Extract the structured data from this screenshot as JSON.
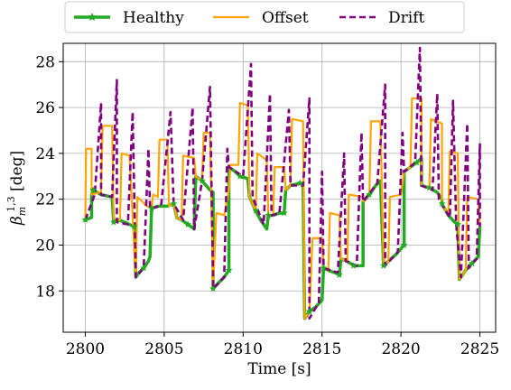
{
  "chart_data": {
    "type": "line",
    "xlabel": "Time [s]",
    "ylabel_main": "β",
    "ylabel_sub": "m",
    "ylabel_sup": "1,3",
    "ylabel_unit": " [deg]",
    "xlim": [
      2798.6,
      2826.0
    ],
    "ylim": [
      16.2,
      28.8
    ],
    "xticks": [
      2800,
      2805,
      2810,
      2815,
      2820,
      2825
    ],
    "yticks": [
      18,
      20,
      22,
      24,
      26,
      28
    ],
    "grid": true,
    "legend_position": "top-center, outside",
    "series": [
      {
        "name": "Healthy",
        "color": "#22aa22",
        "style": "solid-star-markers",
        "points": [
          [
            2800.0,
            21.1
          ],
          [
            2800.4,
            21.2
          ],
          [
            2800.4,
            22.2
          ],
          [
            2800.5,
            22.4
          ],
          [
            2801.0,
            22.2
          ],
          [
            2801.7,
            22.1
          ],
          [
            2801.8,
            21.0
          ],
          [
            2802.1,
            21.1
          ],
          [
            2802.5,
            21.0
          ],
          [
            2803.1,
            20.8
          ],
          [
            2803.2,
            18.6
          ],
          [
            2803.4,
            18.8
          ],
          [
            2803.7,
            19.0
          ],
          [
            2804.0,
            19.3
          ],
          [
            2804.1,
            19.5
          ],
          [
            2804.2,
            21.6
          ],
          [
            2804.6,
            21.7
          ],
          [
            2805.2,
            21.7
          ],
          [
            2805.6,
            21.8
          ],
          [
            2805.8,
            21.2
          ],
          [
            2806.1,
            21.1
          ],
          [
            2806.5,
            20.9
          ],
          [
            2806.9,
            20.7
          ],
          [
            2807.0,
            23.0
          ],
          [
            2807.4,
            22.8
          ],
          [
            2807.9,
            22.4
          ],
          [
            2808.1,
            22.3
          ],
          [
            2808.1,
            18.1
          ],
          [
            2808.5,
            18.4
          ],
          [
            2808.8,
            18.6
          ],
          [
            2809.1,
            18.9
          ],
          [
            2809.1,
            23.4
          ],
          [
            2809.5,
            23.2
          ],
          [
            2809.8,
            23.0
          ],
          [
            2810.3,
            22.9
          ],
          [
            2810.4,
            22.1
          ],
          [
            2810.8,
            21.5
          ],
          [
            2811.1,
            21.1
          ],
          [
            2811.5,
            20.7
          ],
          [
            2811.6,
            21.3
          ],
          [
            2811.9,
            21.3
          ],
          [
            2812.3,
            21.4
          ],
          [
            2812.6,
            21.4
          ],
          [
            2812.7,
            22.4
          ],
          [
            2813.0,
            22.6
          ],
          [
            2813.6,
            22.7
          ],
          [
            2813.8,
            22.6
          ],
          [
            2813.9,
            16.8
          ],
          [
            2814.2,
            17.1
          ],
          [
            2814.6,
            17.3
          ],
          [
            2815.0,
            17.6
          ],
          [
            2815.1,
            19.0
          ],
          [
            2815.4,
            18.9
          ],
          [
            2815.8,
            18.8
          ],
          [
            2816.1,
            18.7
          ],
          [
            2816.2,
            19.4
          ],
          [
            2816.6,
            19.3
          ],
          [
            2817.0,
            19.1
          ],
          [
            2817.6,
            19.1
          ],
          [
            2817.6,
            21.9
          ],
          [
            2818.0,
            22.2
          ],
          [
            2818.4,
            22.6
          ],
          [
            2818.7,
            22.8
          ],
          [
            2818.9,
            19.1
          ],
          [
            2819.2,
            19.3
          ],
          [
            2819.7,
            19.6
          ],
          [
            2820.2,
            20.0
          ],
          [
            2820.2,
            23.2
          ],
          [
            2820.6,
            23.4
          ],
          [
            2821.0,
            23.6
          ],
          [
            2821.3,
            23.8
          ],
          [
            2821.3,
            22.6
          ],
          [
            2821.8,
            22.5
          ],
          [
            2822.3,
            22.3
          ],
          [
            2822.6,
            22.0
          ],
          [
            2822.6,
            21.8
          ],
          [
            2823.0,
            21.3
          ],
          [
            2823.4,
            21.0
          ],
          [
            2823.6,
            20.9
          ],
          [
            2823.7,
            18.5
          ],
          [
            2824.1,
            18.9
          ],
          [
            2824.5,
            19.2
          ],
          [
            2824.9,
            19.5
          ],
          [
            2825.0,
            20.8
          ]
        ]
      },
      {
        "name": "Offset",
        "color": "#ffa500",
        "style": "solid",
        "points": [
          [
            2800.0,
            21.1
          ],
          [
            2800.05,
            24.2
          ],
          [
            2800.4,
            24.2
          ],
          [
            2800.4,
            22.2
          ],
          [
            2800.9,
            22.3
          ],
          [
            2801.0,
            22.3
          ],
          [
            2801.1,
            25.2
          ],
          [
            2801.7,
            25.2
          ],
          [
            2801.8,
            21.0
          ],
          [
            2802.2,
            21.1
          ],
          [
            2802.3,
            24.0
          ],
          [
            2802.8,
            23.9
          ],
          [
            2803.2,
            18.6
          ],
          [
            2803.3,
            22.1
          ],
          [
            2803.9,
            21.7
          ],
          [
            2804.2,
            21.6
          ],
          [
            2804.3,
            22.2
          ],
          [
            2804.6,
            22.1
          ],
          [
            2804.7,
            24.6
          ],
          [
            2805.2,
            24.6
          ],
          [
            2805.3,
            21.7
          ],
          [
            2805.6,
            21.8
          ],
          [
            2805.8,
            21.2
          ],
          [
            2806.1,
            21.1
          ],
          [
            2806.2,
            23.9
          ],
          [
            2806.9,
            23.8
          ],
          [
            2807.0,
            23.0
          ],
          [
            2807.4,
            22.8
          ],
          [
            2807.5,
            24.9
          ],
          [
            2807.9,
            24.9
          ],
          [
            2808.1,
            18.1
          ],
          [
            2808.3,
            21.4
          ],
          [
            2808.8,
            21.3
          ],
          [
            2809.1,
            22.4
          ],
          [
            2809.2,
            23.5
          ],
          [
            2809.7,
            23.5
          ],
          [
            2809.8,
            26.2
          ],
          [
            2810.3,
            26.1
          ],
          [
            2810.4,
            22.1
          ],
          [
            2810.8,
            21.5
          ],
          [
            2810.9,
            24.0
          ],
          [
            2811.5,
            23.7
          ],
          [
            2811.6,
            21.3
          ],
          [
            2811.9,
            21.3
          ],
          [
            2812.0,
            23.4
          ],
          [
            2812.6,
            23.4
          ],
          [
            2812.7,
            22.4
          ],
          [
            2813.0,
            22.6
          ],
          [
            2813.1,
            25.5
          ],
          [
            2813.8,
            25.4
          ],
          [
            2813.9,
            16.8
          ],
          [
            2814.2,
            17.1
          ],
          [
            2814.4,
            20.3
          ],
          [
            2815.0,
            20.3
          ],
          [
            2815.1,
            19.0
          ],
          [
            2815.4,
            18.9
          ],
          [
            2815.5,
            21.4
          ],
          [
            2816.1,
            21.3
          ],
          [
            2816.2,
            19.4
          ],
          [
            2816.6,
            19.3
          ],
          [
            2816.7,
            22.2
          ],
          [
            2817.6,
            22.1
          ],
          [
            2817.6,
            21.9
          ],
          [
            2818.0,
            22.2
          ],
          [
            2818.1,
            25.4
          ],
          [
            2818.7,
            25.4
          ],
          [
            2818.9,
            19.1
          ],
          [
            2819.2,
            19.3
          ],
          [
            2819.3,
            22.1
          ],
          [
            2820.0,
            22.2
          ],
          [
            2820.2,
            23.2
          ],
          [
            2820.6,
            23.4
          ],
          [
            2820.7,
            26.4
          ],
          [
            2821.3,
            26.4
          ],
          [
            2821.3,
            22.6
          ],
          [
            2821.8,
            22.5
          ],
          [
            2821.9,
            25.5
          ],
          [
            2822.6,
            25.3
          ],
          [
            2822.6,
            21.8
          ],
          [
            2823.0,
            21.3
          ],
          [
            2823.1,
            24.1
          ],
          [
            2823.6,
            24.0
          ],
          [
            2823.7,
            18.5
          ],
          [
            2824.1,
            18.9
          ],
          [
            2824.2,
            22.1
          ],
          [
            2824.9,
            22.0
          ],
          [
            2825.0,
            20.8
          ]
        ]
      },
      {
        "name": "Drift",
        "color": "#800080",
        "style": "dashed",
        "points": [
          [
            2800.0,
            21.1
          ],
          [
            2800.6,
            22.2
          ],
          [
            2801.0,
            26.2
          ],
          [
            2801.0,
            22.2
          ],
          [
            2801.7,
            22.1
          ],
          [
            2802.0,
            27.2
          ],
          [
            2802.0,
            21.0
          ],
          [
            2802.7,
            20.9
          ],
          [
            2803.0,
            25.8
          ],
          [
            2803.2,
            18.6
          ],
          [
            2803.7,
            19.0
          ],
          [
            2804.0,
            24.2
          ],
          [
            2804.1,
            21.6
          ],
          [
            2804.8,
            21.7
          ],
          [
            2805.4,
            25.8
          ],
          [
            2805.6,
            21.8
          ],
          [
            2806.2,
            21.1
          ],
          [
            2806.8,
            26.0
          ],
          [
            2806.9,
            20.7
          ],
          [
            2807.4,
            22.8
          ],
          [
            2807.9,
            26.9
          ],
          [
            2808.1,
            18.1
          ],
          [
            2808.8,
            18.6
          ],
          [
            2809.0,
            24.2
          ],
          [
            2809.1,
            23.4
          ],
          [
            2810.0,
            23.0
          ],
          [
            2810.5,
            27.9
          ],
          [
            2810.6,
            22.1
          ],
          [
            2811.3,
            20.9
          ],
          [
            2811.7,
            26.6
          ],
          [
            2811.8,
            21.3
          ],
          [
            2812.3,
            21.4
          ],
          [
            2812.9,
            25.9
          ],
          [
            2813.0,
            22.6
          ],
          [
            2813.8,
            22.6
          ],
          [
            2814.2,
            26.4
          ],
          [
            2814.2,
            16.8
          ],
          [
            2814.8,
            17.5
          ],
          [
            2815.0,
            23.2
          ],
          [
            2815.1,
            19.0
          ],
          [
            2816.0,
            18.8
          ],
          [
            2816.4,
            24.0
          ],
          [
            2816.5,
            19.3
          ],
          [
            2817.2,
            19.1
          ],
          [
            2817.5,
            24.9
          ],
          [
            2817.6,
            21.9
          ],
          [
            2818.5,
            22.7
          ],
          [
            2819.0,
            27.0
          ],
          [
            2819.0,
            19.1
          ],
          [
            2819.8,
            19.7
          ],
          [
            2820.1,
            24.9
          ],
          [
            2820.2,
            23.2
          ],
          [
            2820.9,
            23.6
          ],
          [
            2821.2,
            28.6
          ],
          [
            2821.3,
            22.6
          ],
          [
            2822.0,
            22.4
          ],
          [
            2822.3,
            26.6
          ],
          [
            2822.4,
            22.0
          ],
          [
            2823.1,
            21.2
          ],
          [
            2823.3,
            26.3
          ],
          [
            2823.5,
            20.9
          ],
          [
            2823.8,
            18.6
          ],
          [
            2824.2,
            25.3
          ],
          [
            2824.3,
            19.0
          ],
          [
            2824.8,
            19.4
          ],
          [
            2825.0,
            24.4
          ],
          [
            2825.0,
            20.8
          ]
        ]
      }
    ]
  }
}
